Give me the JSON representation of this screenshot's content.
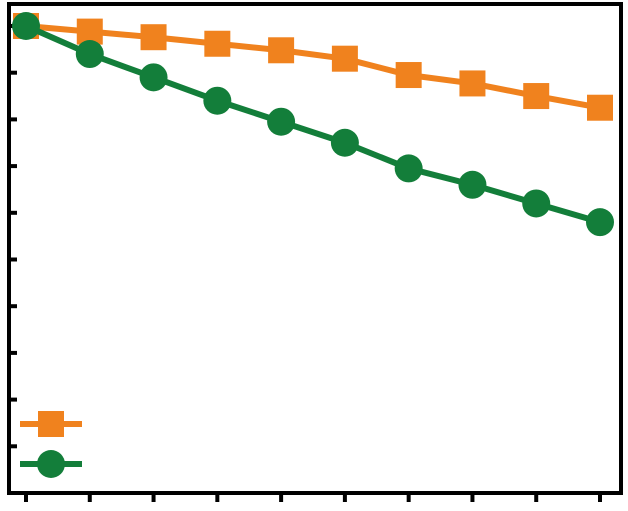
{
  "chart_data": {
    "type": "line",
    "x": [
      0,
      1,
      2,
      3,
      4,
      5,
      6,
      7,
      8,
      9
    ],
    "xlim": [
      0,
      9
    ],
    "ylim": [
      0,
      10
    ],
    "grid": false,
    "legend_position": "bottom-left",
    "series": [
      {
        "color": "#F0821E",
        "marker": "square",
        "values": [
          10.0,
          9.88,
          9.76,
          9.62,
          9.48,
          9.3,
          8.95,
          8.77,
          8.5,
          8.25
        ]
      },
      {
        "color": "#137E3A",
        "marker": "circle",
        "values": [
          10.0,
          9.4,
          8.9,
          8.4,
          7.95,
          7.5,
          6.95,
          6.6,
          6.2,
          5.8
        ]
      }
    ]
  }
}
